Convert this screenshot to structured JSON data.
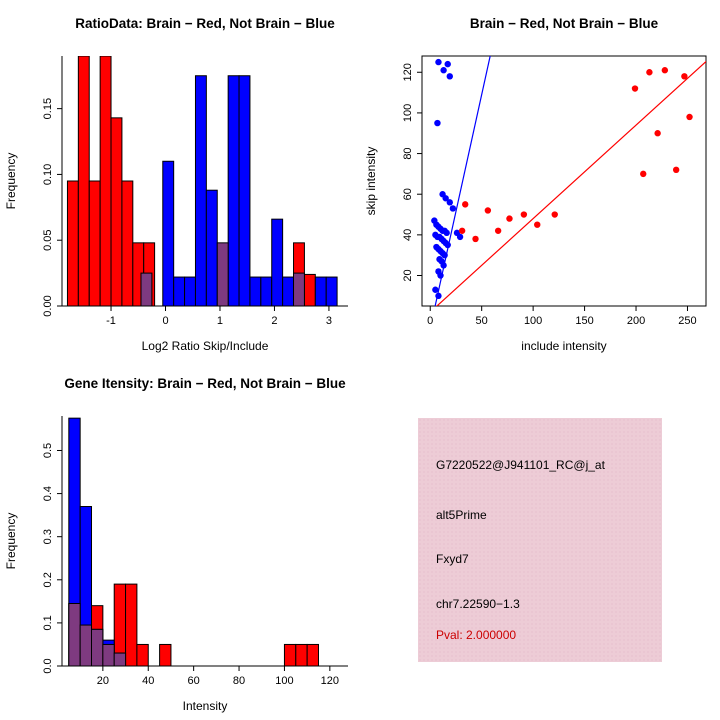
{
  "page": {
    "background": "#ffffff"
  },
  "colors": {
    "red": "#ff0000",
    "blue": "#0000ff",
    "purple": "#7e3a80",
    "axis": "#000000",
    "info_box_background": "#edccd6",
    "pval_red": "#cc0000"
  },
  "chart_data": [
    {
      "type": "bar",
      "title": "RatioData: Brain − Red, Not Brain − Blue",
      "xlabel": "Log2 Ratio Skip/Include",
      "ylabel": "Frequency",
      "xlim": [
        -1.9,
        3.35
      ],
      "ylim": [
        0,
        0.19
      ],
      "xticks": [
        -1,
        0,
        1,
        2,
        3
      ],
      "xtick_labels": [
        "-1",
        "0",
        "1",
        "2",
        "3"
      ],
      "yticks": [
        0,
        0.05,
        0.1,
        0.15
      ],
      "ytick_labels": [
        "0.00",
        "0.05",
        "0.10",
        "0.15"
      ],
      "frame": false,
      "bin_width": 0.2,
      "bars": [
        {
          "x": -1.8,
          "h": 0.095,
          "color": "red"
        },
        {
          "x": -1.6,
          "h": 0.19,
          "color": "red"
        },
        {
          "x": -1.4,
          "h": 0.095,
          "color": "red"
        },
        {
          "x": -1.2,
          "h": 0.19,
          "color": "red"
        },
        {
          "x": -1.0,
          "h": 0.143,
          "color": "red"
        },
        {
          "x": -0.8,
          "h": 0.095,
          "color": "red"
        },
        {
          "x": -0.6,
          "h": 0.048,
          "color": "red"
        },
        {
          "x": -0.4,
          "h": 0.048,
          "color": "red"
        },
        {
          "x": 2.35,
          "h": 0.048,
          "color": "red"
        },
        {
          "x": 2.55,
          "h": 0.024,
          "color": "red"
        },
        {
          "x": -0.05,
          "h": 0.11,
          "color": "blue"
        },
        {
          "x": 0.15,
          "h": 0.022,
          "color": "blue"
        },
        {
          "x": 0.35,
          "h": 0.022,
          "color": "blue"
        },
        {
          "x": 0.55,
          "h": 0.175,
          "color": "blue"
        },
        {
          "x": 0.75,
          "h": 0.088,
          "color": "blue"
        },
        {
          "x": 1.15,
          "h": 0.175,
          "color": "blue"
        },
        {
          "x": 1.35,
          "h": 0.175,
          "color": "blue"
        },
        {
          "x": 1.55,
          "h": 0.022,
          "color": "blue"
        },
        {
          "x": 1.75,
          "h": 0.022,
          "color": "blue"
        },
        {
          "x": 1.95,
          "h": 0.066,
          "color": "blue"
        },
        {
          "x": 2.15,
          "h": 0.022,
          "color": "blue"
        },
        {
          "x": 2.75,
          "h": 0.022,
          "color": "blue"
        },
        {
          "x": 2.95,
          "h": 0.022,
          "color": "blue"
        },
        {
          "x": -0.45,
          "h": 0.025,
          "color": "purple"
        },
        {
          "x": 0.95,
          "h": 0.048,
          "color": "purple"
        },
        {
          "x": 2.35,
          "h": 0.025,
          "color": "purple"
        }
      ]
    },
    {
      "type": "scatter",
      "title": "Brain − Red, Not Brain − Blue",
      "xlabel": "include intensity",
      "ylabel": "skip intensity",
      "xlim": [
        -8,
        268
      ],
      "ylim": [
        5,
        128
      ],
      "xticks": [
        0,
        50,
        100,
        150,
        200,
        250
      ],
      "xtick_labels": [
        "0",
        "50",
        "100",
        "150",
        "200",
        "250"
      ],
      "yticks": [
        20,
        40,
        60,
        80,
        100,
        120
      ],
      "ytick_labels": [
        "20",
        "40",
        "60",
        "80",
        "100",
        "120"
      ],
      "frame": true,
      "series": [
        {
          "name": "Not Brain",
          "color": "blue",
          "points": [
            [
              8,
              125
            ],
            [
              13,
              121
            ],
            [
              17,
              124
            ],
            [
              19,
              118
            ],
            [
              7,
              95
            ],
            [
              12,
              60
            ],
            [
              15,
              58
            ],
            [
              19,
              56
            ],
            [
              22,
              53
            ],
            [
              26,
              41
            ],
            [
              29,
              39
            ],
            [
              4,
              47
            ],
            [
              6,
              45
            ],
            [
              8,
              44
            ],
            [
              10,
              43
            ],
            [
              12,
              42
            ],
            [
              14,
              42
            ],
            [
              16,
              41
            ],
            [
              5,
              40
            ],
            [
              7,
              39
            ],
            [
              9,
              39
            ],
            [
              11,
              38
            ],
            [
              13,
              37
            ],
            [
              15,
              36
            ],
            [
              17,
              35
            ],
            [
              6,
              34
            ],
            [
              8,
              33
            ],
            [
              10,
              32
            ],
            [
              12,
              31
            ],
            [
              14,
              30
            ],
            [
              9,
              28
            ],
            [
              11,
              27
            ],
            [
              13,
              25
            ],
            [
              8,
              22
            ],
            [
              10,
              20
            ],
            [
              5,
              13
            ],
            [
              8,
              10
            ]
          ]
        },
        {
          "name": "Brain",
          "color": "red",
          "points": [
            [
              199,
              112
            ],
            [
              213,
              120
            ],
            [
              228,
              121
            ],
            [
              247,
              118
            ],
            [
              252,
              98
            ],
            [
              221,
              90
            ],
            [
              207,
              70
            ],
            [
              239,
              72
            ],
            [
              34,
              55
            ],
            [
              44,
              38
            ],
            [
              56,
              52
            ],
            [
              66,
              42
            ],
            [
              77,
              48
            ],
            [
              91,
              50
            ],
            [
              104,
              45
            ],
            [
              121,
              50
            ],
            [
              31,
              42
            ]
          ]
        }
      ],
      "lines": [
        {
          "color": "blue",
          "slope": 2.3,
          "intercept": -6
        },
        {
          "color": "red",
          "slope": 0.46,
          "intercept": 2
        }
      ]
    },
    {
      "type": "bar",
      "title": "Gene Itensity: Brain − Red, Not Brain − Blue",
      "xlabel": "Intensity",
      "ylabel": "Frequency",
      "xlim": [
        2,
        128
      ],
      "ylim": [
        0,
        0.58
      ],
      "xticks": [
        20,
        40,
        60,
        80,
        100,
        120
      ],
      "xtick_labels": [
        "20",
        "40",
        "60",
        "80",
        "100",
        "120"
      ],
      "yticks": [
        0,
        0.1,
        0.2,
        0.3,
        0.4,
        0.5
      ],
      "ytick_labels": [
        "0.0",
        "0.1",
        "0.2",
        "0.3",
        "0.4",
        "0.5"
      ],
      "frame": false,
      "bin_width": 5,
      "bars": [
        {
          "x": 5,
          "h": 0.145,
          "color": "red"
        },
        {
          "x": 10,
          "h": 0.095,
          "color": "red"
        },
        {
          "x": 15,
          "h": 0.14,
          "color": "red"
        },
        {
          "x": 20,
          "h": 0.05,
          "color": "red"
        },
        {
          "x": 25,
          "h": 0.19,
          "color": "red"
        },
        {
          "x": 30,
          "h": 0.19,
          "color": "red"
        },
        {
          "x": 35,
          "h": 0.05,
          "color": "red"
        },
        {
          "x": 45,
          "h": 0.05,
          "color": "red"
        },
        {
          "x": 100,
          "h": 0.05,
          "color": "red"
        },
        {
          "x": 105,
          "h": 0.05,
          "color": "red"
        },
        {
          "x": 110,
          "h": 0.05,
          "color": "red"
        },
        {
          "x": 5,
          "h": 0.575,
          "color": "blue"
        },
        {
          "x": 10,
          "h": 0.37,
          "color": "blue"
        },
        {
          "x": 15,
          "h": 0.085,
          "color": "blue"
        },
        {
          "x": 20,
          "h": 0.06,
          "color": "blue"
        },
        {
          "x": 25,
          "h": 0.03,
          "color": "blue"
        },
        {
          "x": 5,
          "h": 0.145,
          "color": "purple"
        },
        {
          "x": 10,
          "h": 0.095,
          "color": "purple"
        },
        {
          "x": 15,
          "h": 0.085,
          "color": "purple"
        },
        {
          "x": 20,
          "h": 0.05,
          "color": "purple"
        },
        {
          "x": 25,
          "h": 0.03,
          "color": "purple"
        }
      ]
    }
  ],
  "info_box": {
    "lines": [
      {
        "text": "G7220522@J941101_RC@j_at",
        "color": "#000000"
      },
      {
        "text": "alt5Prime",
        "color": "#000000"
      },
      {
        "text": "Fxyd7",
        "color": "#000000"
      },
      {
        "text": "chr7.22590−1.3",
        "color": "#000000"
      },
      {
        "text": "Pval: 2.000000",
        "color": "#cc0000"
      }
    ]
  }
}
